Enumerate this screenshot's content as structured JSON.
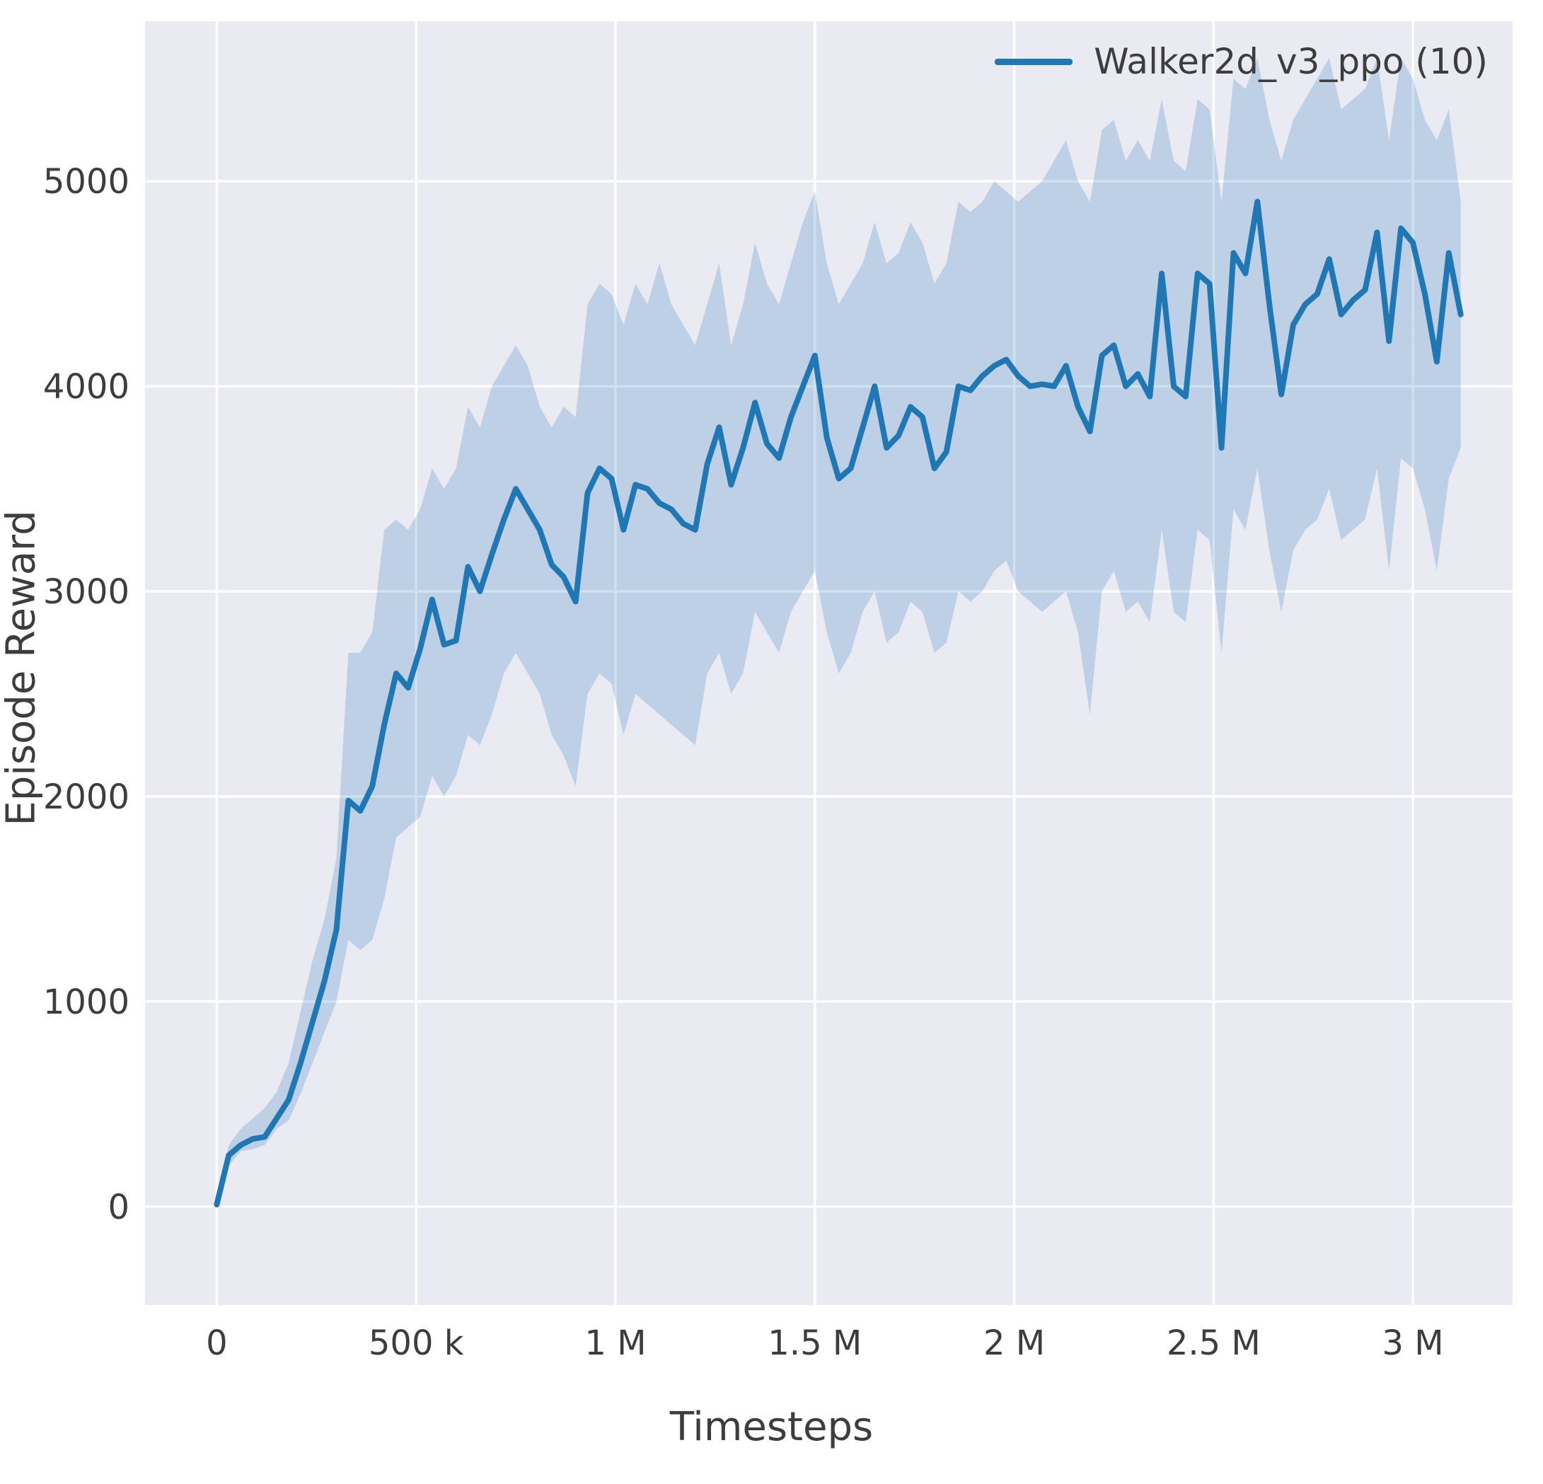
{
  "figure": {
    "xlabel": "Timesteps",
    "ylabel": "Episode Reward"
  },
  "chart_data": {
    "type": "line",
    "title": "",
    "xlabel": "Timesteps",
    "ylabel": "Episode Reward",
    "grid": true,
    "legend_position": "upper right",
    "xlim": [
      -180000,
      3250000
    ],
    "ylim": [
      -480,
      5780
    ],
    "xticks": {
      "values": [
        0,
        500000,
        1000000,
        1500000,
        2000000,
        2500000,
        3000000
      ],
      "labels": [
        "0",
        "500 k",
        "1 M",
        "1.5 M",
        "2 M",
        "2.5 M",
        "3 M"
      ]
    },
    "yticks": {
      "values": [
        0,
        1000,
        2000,
        3000,
        4000,
        5000
      ],
      "labels": [
        "0",
        "1000",
        "2000",
        "3000",
        "4000",
        "5000"
      ]
    },
    "colors": {
      "line": "#1f77b4",
      "band": "#1f77b4",
      "band_opacity": 0.22,
      "plot_bg": "#eaeaf2",
      "grid": "#ffffff",
      "text": "#3d3d3d"
    },
    "series": [
      {
        "name": "Walker2d_v3_ppo (10)",
        "x": [
          0,
          30000,
          60000,
          90000,
          120000,
          150000,
          180000,
          210000,
          240000,
          270000,
          300000,
          330000,
          360000,
          390000,
          420000,
          450000,
          480000,
          510000,
          540000,
          570000,
          600000,
          630000,
          660000,
          690000,
          720000,
          750000,
          780000,
          810000,
          840000,
          870000,
          900000,
          930000,
          960000,
          990000,
          1020000,
          1050000,
          1080000,
          1110000,
          1140000,
          1170000,
          1200000,
          1230000,
          1260000,
          1290000,
          1320000,
          1350000,
          1380000,
          1410000,
          1440000,
          1470000,
          1500000,
          1530000,
          1560000,
          1590000,
          1620000,
          1650000,
          1680000,
          1710000,
          1740000,
          1770000,
          1800000,
          1830000,
          1860000,
          1890000,
          1920000,
          1950000,
          1980000,
          2010000,
          2040000,
          2070000,
          2100000,
          2130000,
          2160000,
          2190000,
          2220000,
          2250000,
          2280000,
          2310000,
          2340000,
          2370000,
          2400000,
          2430000,
          2460000,
          2490000,
          2520000,
          2550000,
          2580000,
          2610000,
          2640000,
          2670000,
          2700000,
          2730000,
          2760000,
          2790000,
          2820000,
          2850000,
          2880000,
          2910000,
          2940000,
          2970000,
          3000000,
          3030000,
          3060000,
          3090000,
          3120000
        ],
        "mean": [
          10,
          250,
          300,
          330,
          340,
          430,
          520,
          700,
          900,
          1100,
          1350,
          1980,
          1930,
          2050,
          2350,
          2600,
          2530,
          2720,
          2960,
          2740,
          2760,
          3120,
          3000,
          3180,
          3350,
          3500,
          3400,
          3300,
          3130,
          3070,
          2950,
          3480,
          3600,
          3550,
          3300,
          3520,
          3500,
          3430,
          3400,
          3330,
          3300,
          3620,
          3800,
          3520,
          3700,
          3920,
          3720,
          3650,
          3850,
          4000,
          4150,
          3750,
          3550,
          3600,
          3800,
          4000,
          3700,
          3760,
          3900,
          3850,
          3600,
          3680,
          4000,
          3980,
          4050,
          4100,
          4130,
          4050,
          4000,
          4010,
          4000,
          4100,
          3900,
          3780,
          4150,
          4200,
          4000,
          4060,
          3950,
          4550,
          4000,
          3950,
          4550,
          4500,
          3700,
          4650,
          4550,
          4900,
          4400,
          3960,
          4300,
          4400,
          4450,
          4620,
          4350,
          4420,
          4470,
          4750,
          4220,
          4770,
          4700,
          4450,
          4120,
          4650,
          4350
        ],
        "lo": [
          0,
          200,
          270,
          280,
          300,
          380,
          420,
          550,
          700,
          850,
          1000,
          1300,
          1250,
          1300,
          1500,
          1800,
          1850,
          1900,
          2100,
          2000,
          2100,
          2300,
          2250,
          2400,
          2600,
          2700,
          2600,
          2500,
          2300,
          2200,
          2050,
          2500,
          2600,
          2550,
          2300,
          2500,
          2450,
          2400,
          2350,
          2300,
          2250,
          2600,
          2700,
          2500,
          2600,
          2900,
          2800,
          2700,
          2900,
          3000,
          3100,
          2800,
          2600,
          2700,
          2900,
          3000,
          2750,
          2800,
          2950,
          2900,
          2700,
          2750,
          3000,
          2950,
          3000,
          3100,
          3150,
          3000,
          2950,
          2900,
          2950,
          3000,
          2800,
          2400,
          3000,
          3100,
          2900,
          2950,
          2850,
          3300,
          2900,
          2850,
          3300,
          3250,
          2700,
          3400,
          3300,
          3600,
          3200,
          2900,
          3200,
          3300,
          3350,
          3500,
          3250,
          3300,
          3350,
          3600,
          3100,
          3650,
          3600,
          3400,
          3100,
          3550,
          3700
        ],
        "hi": [
          30,
          300,
          380,
          430,
          480,
          560,
          700,
          950,
          1200,
          1400,
          1700,
          2700,
          2700,
          2800,
          3300,
          3350,
          3300,
          3400,
          3600,
          3500,
          3600,
          3900,
          3800,
          4000,
          4100,
          4200,
          4100,
          3900,
          3800,
          3900,
          3850,
          4400,
          4500,
          4450,
          4300,
          4500,
          4400,
          4600,
          4400,
          4300,
          4200,
          4400,
          4600,
          4200,
          4400,
          4700,
          4500,
          4400,
          4600,
          4800,
          4950,
          4600,
          4400,
          4500,
          4600,
          4800,
          4600,
          4650,
          4800,
          4700,
          4500,
          4600,
          4900,
          4850,
          4900,
          5000,
          4950,
          4900,
          4950,
          5000,
          5100,
          5200,
          5000,
          4900,
          5250,
          5300,
          5100,
          5200,
          5100,
          5400,
          5100,
          5050,
          5400,
          5350,
          4900,
          5500,
          5450,
          5600,
          5300,
          5100,
          5300,
          5400,
          5500,
          5600,
          5350,
          5400,
          5450,
          5600,
          5200,
          5600,
          5500,
          5300,
          5200,
          5350,
          4900
        ]
      }
    ]
  }
}
